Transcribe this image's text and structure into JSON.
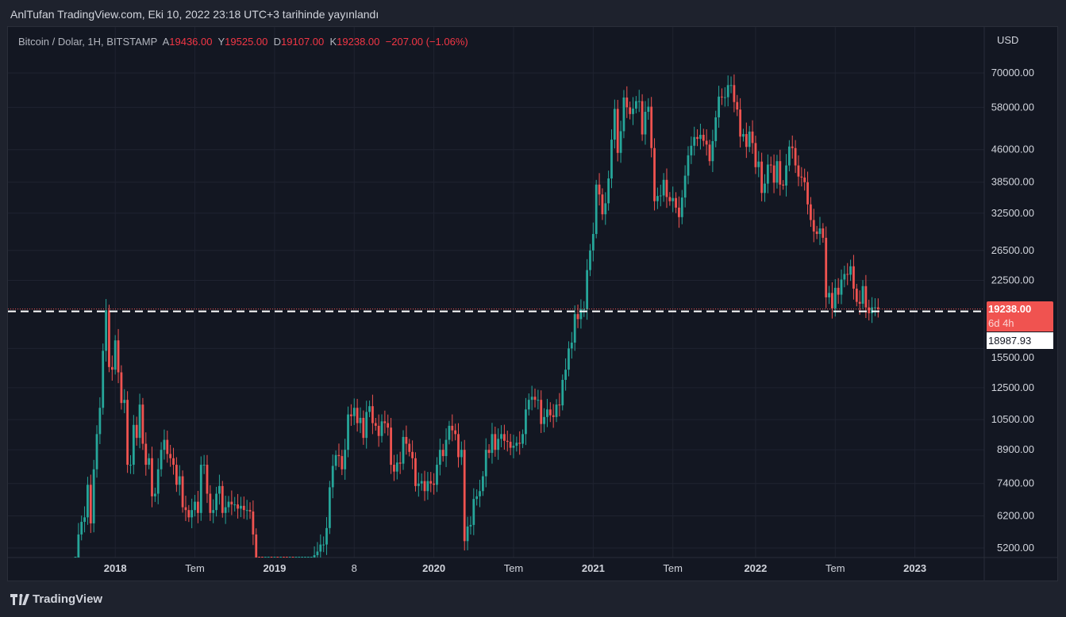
{
  "header": {
    "published": "AnlTufan TradingView.com, Eki 10, 2022 23:18 UTC+3 tarihinde yayınlandı"
  },
  "legend": {
    "symbol": "Bitcoin / Dolar, 1H, BITSTAMP",
    "open_label": "A",
    "open": "19436.00",
    "high_label": "Y",
    "high": "19525.00",
    "low_label": "D",
    "low": "19107.00",
    "close_label": "K",
    "close": "19238.00",
    "change": "−207.00 (−1.06%)"
  },
  "price_labels": {
    "last": "19238.00",
    "countdown": "6d 4h",
    "crosshair": "18987.93"
  },
  "footer": {
    "brand": "TradingView"
  },
  "colors": {
    "up": "#26a69a",
    "down": "#ef5350",
    "background": "#131722",
    "grid": "#1f2330"
  },
  "chart_data": {
    "type": "candlestick",
    "title": "Bitcoin / Dolar, 1H, BITSTAMP",
    "currency": "USD",
    "y_scale": "log",
    "ylim": [
      4950,
      82000
    ],
    "y_ticks": [
      70000,
      58000,
      46000,
      38500,
      32500,
      26500,
      22500,
      15500,
      12500,
      10500,
      8900,
      7400,
      6200,
      5200
    ],
    "y_tick_labels": [
      "70000.00",
      "58000.00",
      "46000.00",
      "38500.00",
      "32500.00",
      "26500.00",
      "22500.00",
      "15500.00",
      "12500.00",
      "10500.00",
      "8900.00",
      "7400.00",
      "6200.00",
      "5200.00"
    ],
    "x_ticks": [
      {
        "label": "2018",
        "week": 13
      },
      {
        "label": "Tem",
        "week": 39
      },
      {
        "label": "2019",
        "week": 65
      },
      {
        "label": "8",
        "week": 91
      },
      {
        "label": "2020",
        "week": 117
      },
      {
        "label": "Tem",
        "week": 143
      },
      {
        "label": "2021",
        "week": 169
      },
      {
        "label": "Tem",
        "week": 195
      },
      {
        "label": "2022",
        "week": 222
      },
      {
        "label": "Tem",
        "week": 248
      },
      {
        "label": "2023",
        "week": 274
      }
    ],
    "first_open": 4300,
    "interval": "weekly (approx.)",
    "closes": [
      4600,
      5600,
      6000,
      6150,
      7350,
      5950,
      8000,
      9700,
      11200,
      15300,
      19100,
      14000,
      13800,
      16200,
      13600,
      11500,
      11700,
      8200,
      8200,
      10200,
      9500,
      11400,
      9200,
      8200,
      8500,
      6900,
      7000,
      8000,
      8900,
      9400,
      8700,
      8500,
      8200,
      7350,
      7700,
      6500,
      6400,
      6150,
      6400,
      6700,
      6300,
      8200,
      8200,
      7000,
      6300,
      6400,
      7000,
      7300,
      6300,
      6500,
      6700,
      6600,
      6600,
      6450,
      6550,
      6400,
      6400,
      6350,
      5600,
      3800,
      3550,
      3200,
      3200,
      4000,
      3850,
      4000,
      3600,
      3600,
      3550,
      3450,
      3650,
      3600,
      3800,
      3850,
      3900,
      4000,
      4000,
      4100,
      5000,
      5100,
      5300,
      5300,
      5800,
      7250,
      8150,
      8650,
      8600,
      8000,
      8900,
      10800,
      10700,
      11200,
      10300,
      10600,
      9500,
      10950,
      11300,
      10300,
      10150,
      9600,
      10400,
      10300,
      10050,
      8200,
      7900,
      8300,
      8250,
      9550,
      9200,
      8800,
      8500,
      7300,
      7400,
      7500,
      7100,
      7500,
      7400,
      7350,
      8200,
      8900,
      8600,
      9400,
      10150,
      9900,
      9700,
      8550,
      8900,
      5400,
      5850,
      5900,
      6800,
      6900,
      7100,
      7700,
      8900,
      8750,
      9700,
      8900,
      9450,
      9700,
      9350,
      9300,
      9000,
      9100,
      9250,
      9200,
      9700,
      11100,
      11700,
      11900,
      11700,
      11700,
      10250,
      10650,
      11100,
      10750,
      10650,
      11400,
      11350,
      13050,
      13800,
      15500,
      16000,
      18700,
      18200,
      19200,
      19200,
      23800,
      26500,
      29000,
      38000,
      36000,
      32300,
      34300,
      39300,
      48600,
      57500,
      45200,
      50900,
      61200,
      58000,
      55900,
      57600,
      60000,
      60000,
      50000,
      56600,
      58200,
      46400,
      34700,
      35700,
      35800,
      39000,
      35500,
      34700,
      35300,
      33500,
      31800,
      35400,
      39900,
      44600,
      47000,
      49300,
      48800,
      49900,
      48300,
      47300,
      43200,
      48200,
      54900,
      61500,
      61300,
      61300,
      65500,
      65500,
      59700,
      57300,
      49400,
      50100,
      46700,
      50800,
      47700,
      41800,
      43100,
      36300,
      38200,
      42400,
      42200,
      38400,
      43200,
      38000,
      37800,
      42200,
      46800,
      46400,
      42200,
      39700,
      39500,
      38500,
      34100,
      31300,
      29400,
      29000,
      29900,
      28400,
      20500,
      21000,
      19300,
      21600,
      20800,
      22600,
      23300,
      23200,
      24300,
      21500,
      20000,
      19800,
      21800,
      19400,
      18800,
      19400,
      19400,
      19238
    ],
    "last_price": 19238.0,
    "crosshair_price": 18987.93
  }
}
